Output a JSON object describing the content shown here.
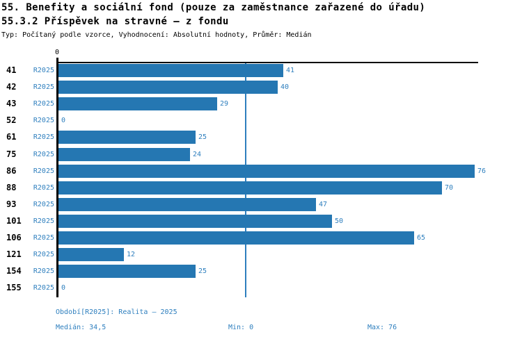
{
  "header": {
    "title": "55. Benefity a sociální fond (pouze za zaměstnance zařazené do úřadu)",
    "subtitle": "55.3.2 Příspěvek na stravné – z fondu",
    "meta": "Typ: Počítaný podle vzorce, Vyhodnocení: Absolutní hodnoty, Průměr: Medián"
  },
  "chart_data": {
    "type": "bar",
    "orientation": "horizontal",
    "title": "55.3.2 Příspěvek na stravné – z fondu",
    "categories": [
      "41",
      "42",
      "43",
      "52",
      "61",
      "75",
      "86",
      "88",
      "93",
      "101",
      "106",
      "121",
      "154",
      "155"
    ],
    "series": [
      {
        "name": "R2025",
        "values": [
          41,
          40,
          29,
          0,
          25,
          24,
          76,
          70,
          47,
          50,
          65,
          12,
          25,
          0
        ]
      }
    ],
    "data_labels": [
      "41",
      "40",
      "29",
      "0",
      "25",
      "24",
      "76",
      "70",
      "47",
      "50",
      "65",
      "12",
      "25",
      "0"
    ],
    "xlim": [
      0,
      76.6
    ],
    "x_axis_ticks": [
      "0"
    ],
    "median_value": 34.5,
    "median_line_shown": true,
    "grid": false,
    "legend_position": "none",
    "colors": {
      "bar": "#2577b2",
      "text_accent": "#2e7fbe",
      "axis": "#000000"
    }
  },
  "footer": {
    "period": "Období[R2025]: Realita – 2025",
    "median": "Medián: 34,5",
    "min": "Min: 0",
    "max": "Max: 76"
  }
}
